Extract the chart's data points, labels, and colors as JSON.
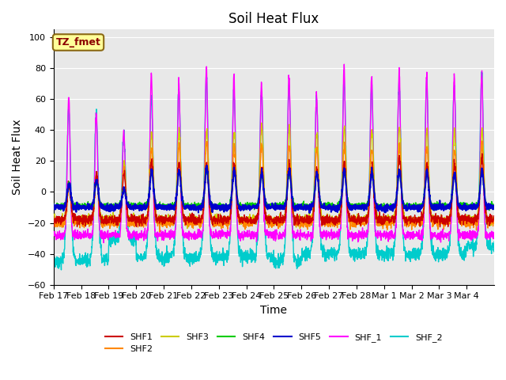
{
  "title": "Soil Heat Flux",
  "ylabel": "Soil Heat Flux",
  "xlabel": "Time",
  "ylim": [
    -60,
    105
  ],
  "yticks": [
    -60,
    -40,
    -20,
    0,
    20,
    40,
    60,
    80,
    100
  ],
  "annotation_text": "TZ_fmet",
  "annotation_color": "#8B0000",
  "annotation_bg": "#FFFF99",
  "annotation_border": "#8B6914",
  "series_colors": {
    "SHF1": "#CC0000",
    "SHF2": "#FF8800",
    "SHF3": "#CCCC00",
    "SHF4": "#00CC00",
    "SHF5": "#0000CC",
    "SHF_1": "#FF00FF",
    "SHF_2": "#00CCCC"
  },
  "n_days": 16,
  "bg_color": "#E8E8E8",
  "grid_color": "#FFFFFF",
  "xticklabels": [
    "Feb 17",
    "Feb 18",
    "Feb 19",
    "Feb 20",
    "Feb 21",
    "Feb 22",
    "Feb 23",
    "Feb 24",
    "Feb 25",
    "Feb 26",
    "Feb 27",
    "Feb 28",
    "Mar 1",
    "Mar 2",
    "Mar 3",
    "Mar 4"
  ]
}
